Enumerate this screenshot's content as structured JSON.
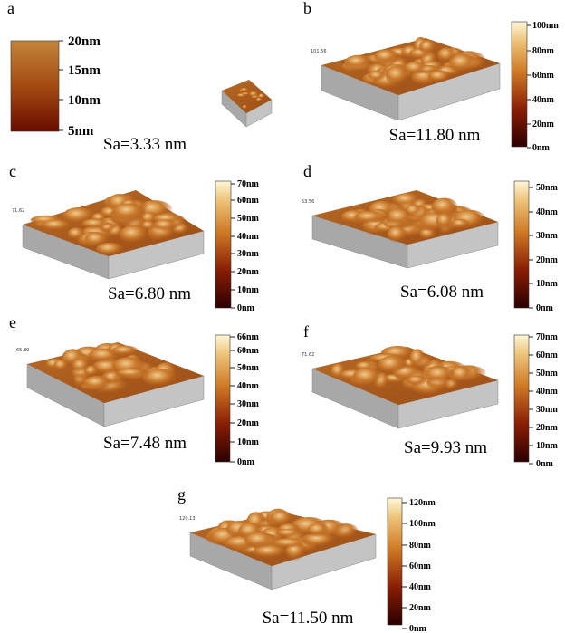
{
  "panels": [
    {
      "label": "a",
      "sa": "Sa=3.33 nm",
      "colorbar": [
        "20nm",
        "15nm",
        "10nm",
        "5nm"
      ]
    },
    {
      "label": "b",
      "sa": "Sa=11.80 nm",
      "zmax": "101.56",
      "colorbar": [
        "100nm",
        "80nm",
        "60nm",
        "40nm",
        "20nm",
        "0nm"
      ]
    },
    {
      "label": "c",
      "sa": "Sa=6.80 nm",
      "zmax": "71.62",
      "colorbar": [
        "70nm",
        "60nm",
        "50nm",
        "40nm",
        "30nm",
        "20nm",
        "10nm",
        "0nm"
      ]
    },
    {
      "label": "d",
      "sa": "Sa=6.08 nm",
      "zmax": "53.56",
      "colorbar": [
        "50nm",
        "40nm",
        "30nm",
        "20nm",
        "10nm",
        "0nm"
      ]
    },
    {
      "label": "e",
      "sa": "Sa=7.48 nm",
      "zmax": "65.89",
      "colorbar": [
        "66nm",
        "60nm",
        "50nm",
        "40nm",
        "30nm",
        "20nm",
        "10nm",
        "0nm"
      ]
    },
    {
      "label": "f",
      "sa": "Sa=9.93 nm",
      "zmax": "71.62",
      "colorbar": [
        "70nm",
        "60nm",
        "50nm",
        "40nm",
        "30nm",
        "20nm",
        "10nm",
        "0nm"
      ]
    },
    {
      "label": "g",
      "sa": "Sa=11.50 nm",
      "zmax": "120.13",
      "colorbar": [
        "120nm",
        "100nm",
        "80nm",
        "60nm",
        "40nm",
        "20nm",
        "0nm"
      ]
    }
  ]
}
